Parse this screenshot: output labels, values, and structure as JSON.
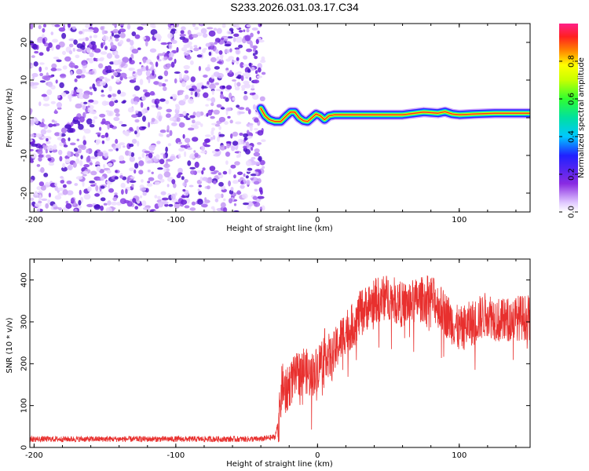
{
  "figure_title": "S233.2026.031.03.17.C34",
  "chart_data": [
    {
      "id": "spectrogram",
      "type": "heatmap",
      "title": "S233.2026.031.03.17.C34",
      "xlabel": "Height of straight line (km)",
      "ylabel": "Frequency (Hz)",
      "xlim": [
        -203,
        150
      ],
      "ylim": [
        -25,
        25
      ],
      "x_ticks": [
        -200,
        -100,
        0,
        100
      ],
      "y_ticks": [
        -20,
        -10,
        0,
        10,
        20
      ],
      "noise_region_x": [
        -203,
        -38
      ],
      "signal_track": {
        "x": [
          -40,
          -37,
          -34,
          -30,
          -26,
          -22,
          -19,
          -16,
          -13,
          -10,
          -7,
          -4,
          -1,
          2,
          5,
          8,
          12,
          20,
          40,
          60,
          75,
          85,
          90,
          95,
          100,
          110,
          125,
          140,
          150
        ],
        "y": [
          2.5,
          0.5,
          -0.5,
          -1,
          -1,
          0.5,
          1.5,
          1.5,
          0,
          -0.8,
          -1,
          0,
          1,
          0.5,
          -0.5,
          0.5,
          0.8,
          0.8,
          0.8,
          0.8,
          1.5,
          1.2,
          1.6,
          1.0,
          0.8,
          1.0,
          1.2,
          1.2,
          1.2
        ]
      },
      "colorbar": {
        "label": "Normalized spectral amplitude",
        "range": [
          0,
          1
        ],
        "ticks": [
          0.0,
          0.2,
          0.4,
          0.6,
          0.8
        ]
      }
    },
    {
      "id": "snr",
      "type": "line",
      "xlabel": "Height of straight line (km)",
      "ylabel": "SNR (10 * v/v)",
      "xlim": [
        -203,
        150
      ],
      "ylim": [
        0,
        450
      ],
      "x_ticks": [
        -200,
        -100,
        0,
        100
      ],
      "y_ticks": [
        0,
        100,
        200,
        300,
        400
      ],
      "color": "#e8302e",
      "series": [
        {
          "name": "SNR",
          "x": [
            -203,
            -180,
            -150,
            -120,
            -90,
            -60,
            -40,
            -30,
            -27,
            -25,
            -22,
            -20,
            -15,
            -10,
            -5,
            0,
            5,
            10,
            15,
            20,
            25,
            30,
            40,
            50,
            60,
            70,
            80,
            90,
            100,
            110,
            120,
            130,
            140,
            150
          ],
          "values": [
            20,
            20,
            20,
            20,
            20,
            20,
            20,
            25,
            70,
            150,
            130,
            150,
            170,
            190,
            170,
            190,
            230,
            210,
            250,
            280,
            290,
            320,
            350,
            360,
            340,
            350,
            360,
            320,
            280,
            300,
            320,
            300,
            310,
            310
          ]
        }
      ]
    }
  ]
}
